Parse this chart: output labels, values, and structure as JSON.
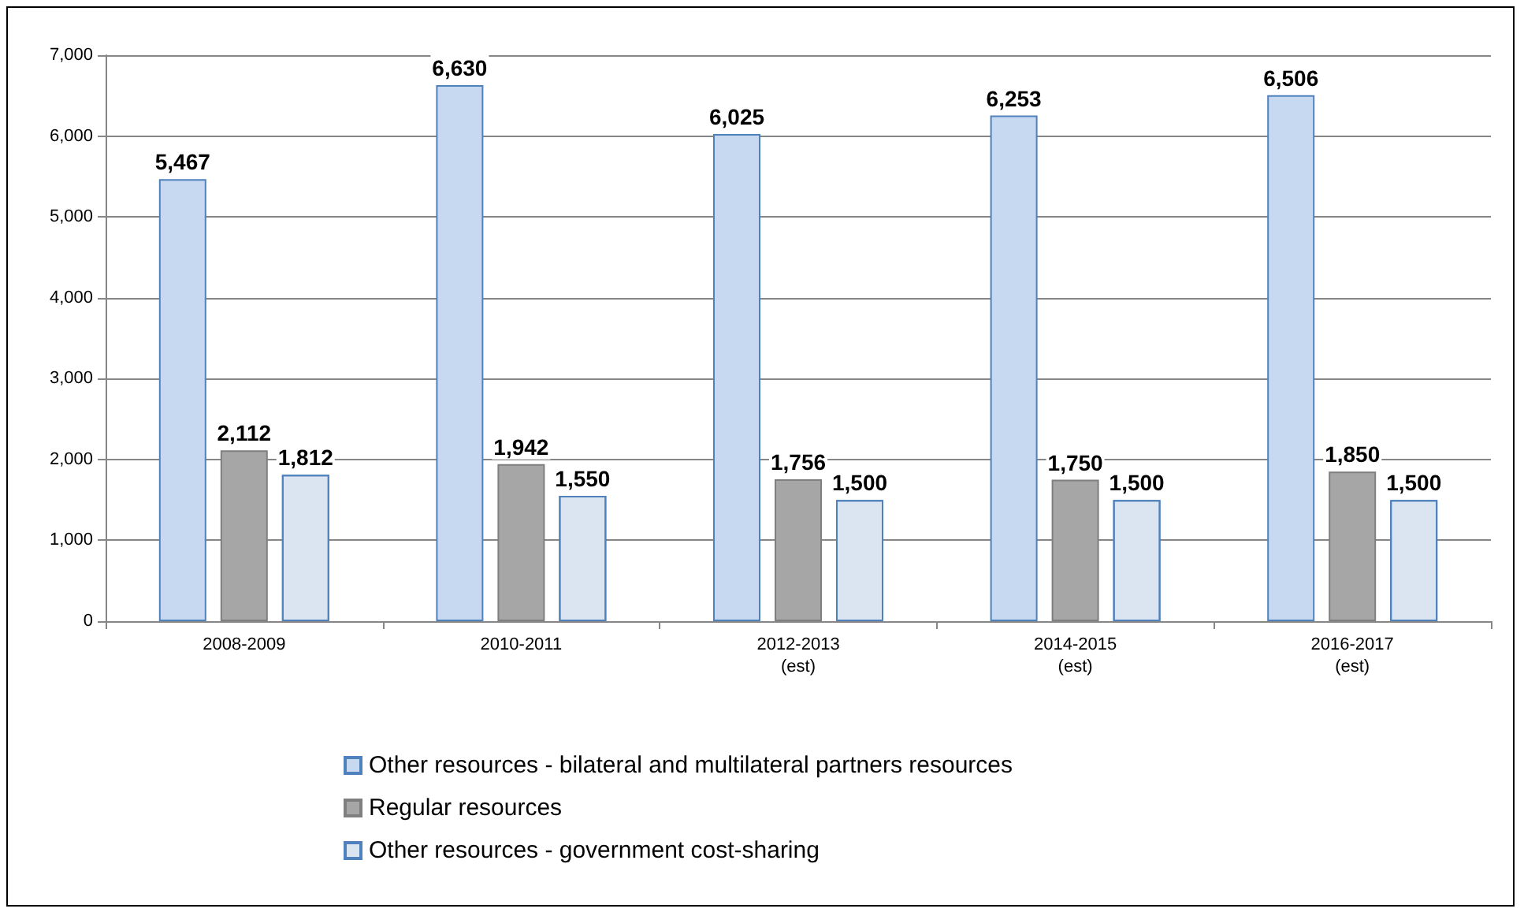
{
  "chart_data": {
    "type": "bar",
    "categories": [
      "2008-2009",
      "2010-2011",
      "2012-2013\n(est)",
      "2014-2015\n(est)",
      "2016-2017\n(est)"
    ],
    "series": [
      {
        "name": "Other resources - bilateral and multilateral partners resources",
        "color": "#c6d9f1",
        "values": [
          5467,
          6630,
          6025,
          6253,
          6506
        ],
        "value_labels": [
          "5,467",
          "6,630",
          "6,025",
          "6,253",
          "6,506"
        ]
      },
      {
        "name": "Regular resources",
        "color": "#a6a6a6",
        "values": [
          2112,
          1942,
          1756,
          1750,
          1850
        ],
        "value_labels": [
          "2,112",
          "1,942",
          "1,756",
          "1,750",
          "1,850"
        ]
      },
      {
        "name": "Other resources - government cost-sharing",
        "color": "#dbe5f1",
        "values": [
          1812,
          1550,
          1500,
          1500,
          1500
        ],
        "value_labels": [
          "1,812",
          "1,550",
          "1,500",
          "1,500",
          "1,500"
        ]
      }
    ],
    "ylim": [
      0,
      7000
    ],
    "yticks": [
      {
        "value": 0,
        "label": "0"
      },
      {
        "value": 1000,
        "label": "1,000"
      },
      {
        "value": 2000,
        "label": "2,000"
      },
      {
        "value": 3000,
        "label": "3,000"
      },
      {
        "value": 4000,
        "label": "4,000"
      },
      {
        "value": 5000,
        "label": "5,000"
      },
      {
        "value": 6000,
        "label": "6,000"
      },
      {
        "value": 7000,
        "label": "7,000"
      }
    ],
    "grid": "y",
    "legend": "bottom"
  }
}
